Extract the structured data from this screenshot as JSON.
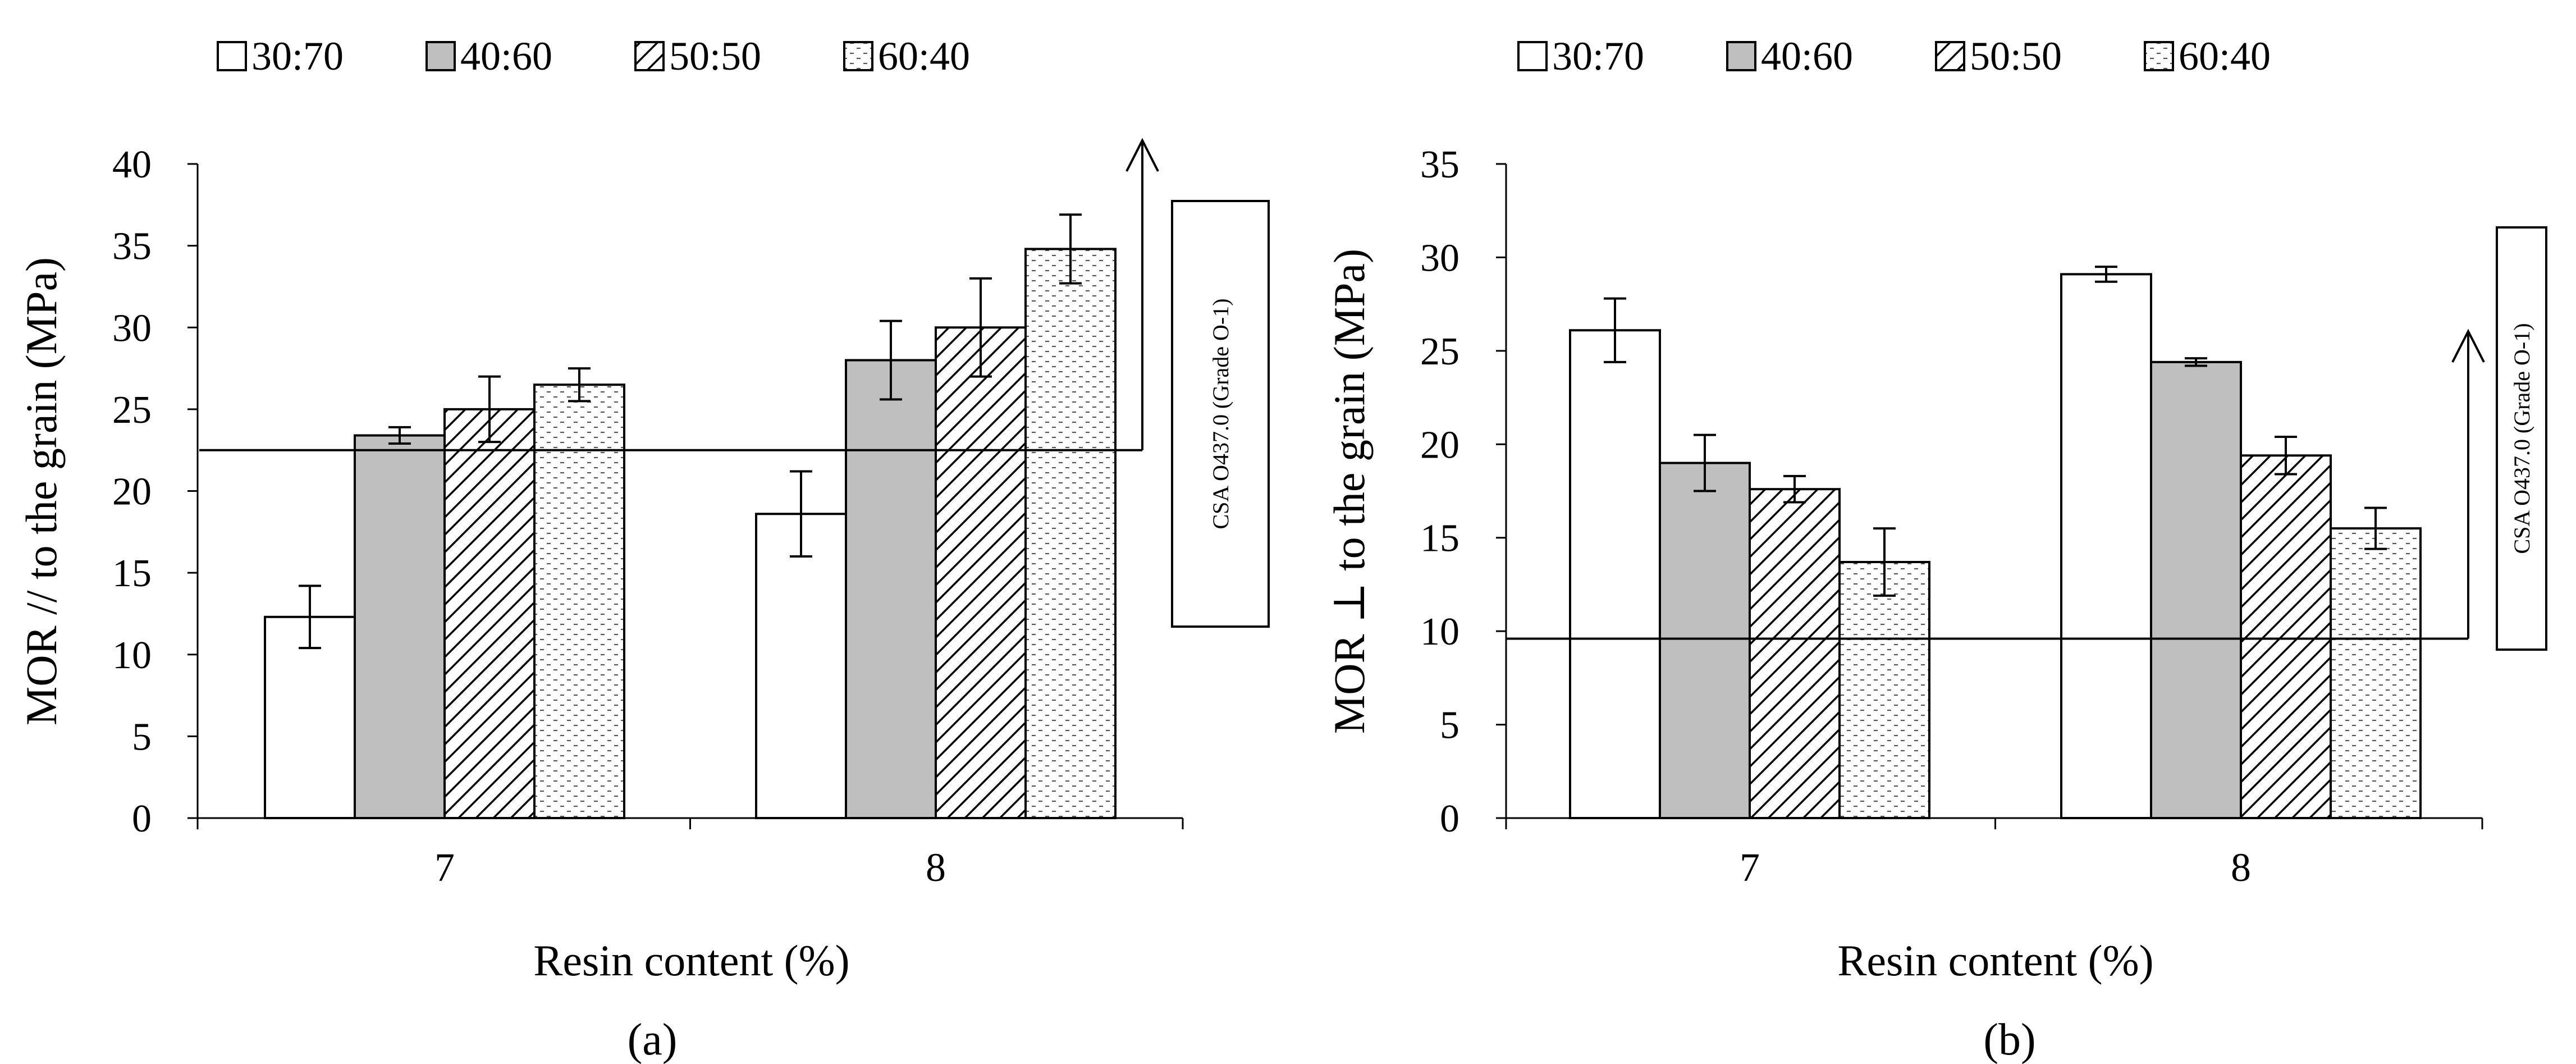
{
  "colors": {
    "ink": "#000000",
    "bar_fill_30_70": "#ffffff",
    "bar_fill_40_60": "#bfbfbf",
    "background": "#ffffff"
  },
  "patterns": [
    "solid-white",
    "solid-gray",
    "diagonal-hatch",
    "dotted-dash"
  ],
  "chart_data": [
    {
      "type": "bar",
      "panel_label": "(a)",
      "categories": [
        "7",
        "8"
      ],
      "xlabel": "Resin content (%)",
      "ylabel": "MOR // to the grain (MPa)",
      "ylim": [
        0,
        40
      ],
      "yticks": [
        "0",
        "5",
        "10",
        "15",
        "20",
        "25",
        "30",
        "35",
        "40"
      ],
      "grid": false,
      "legend_position": "top",
      "series": [
        {
          "name": "30:70",
          "values": [
            12.3,
            18.6
          ],
          "errors": [
            1.9,
            2.6
          ]
        },
        {
          "name": "40:60",
          "values": [
            23.4,
            28.0
          ],
          "errors": [
            0.5,
            2.4
          ]
        },
        {
          "name": "50:50",
          "values": [
            25.0,
            30.0
          ],
          "errors": [
            2.0,
            3.0
          ]
        },
        {
          "name": "60:40",
          "values": [
            26.5,
            34.8
          ],
          "errors": [
            1.0,
            2.1
          ]
        }
      ],
      "threshold": {
        "value": 22.5,
        "label": "CSA O437.0 (Grade O-1)"
      }
    },
    {
      "type": "bar",
      "panel_label": "(b)",
      "categories": [
        "7",
        "8"
      ],
      "xlabel": "Resin content (%)",
      "ylabel": "MOR ⊥ to the grain (MPa)",
      "ylim": [
        0,
        35
      ],
      "yticks": [
        "0",
        "5",
        "10",
        "15",
        "20",
        "25",
        "30",
        "35"
      ],
      "grid": false,
      "legend_position": "top",
      "series": [
        {
          "name": "30:70",
          "values": [
            26.1,
            29.1
          ],
          "errors": [
            1.7,
            0.4
          ]
        },
        {
          "name": "40:60",
          "values": [
            19.0,
            24.4
          ],
          "errors": [
            1.5,
            0.2
          ]
        },
        {
          "name": "50:50",
          "values": [
            17.6,
            19.4
          ],
          "errors": [
            0.7,
            1.0
          ]
        },
        {
          "name": "60:40",
          "values": [
            13.7,
            15.5
          ],
          "errors": [
            1.8,
            1.1
          ]
        }
      ],
      "threshold": {
        "value": 9.6,
        "label": "CSA O437.0 (Grade O-1)"
      }
    }
  ]
}
